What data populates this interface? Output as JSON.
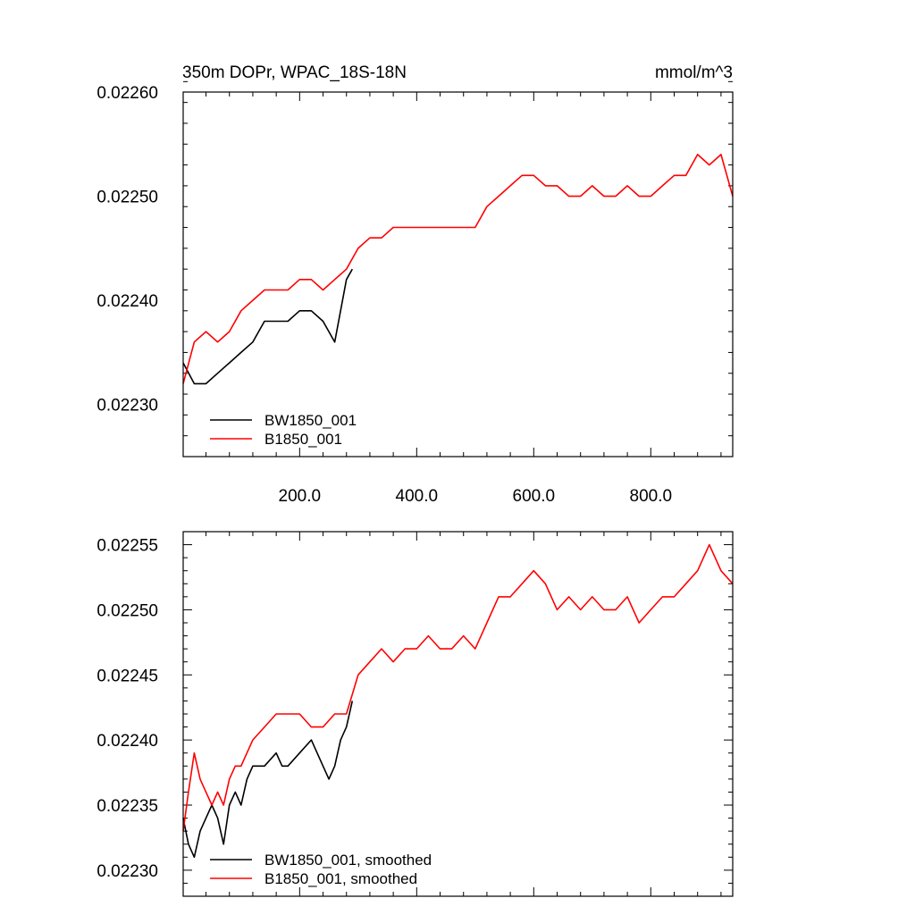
{
  "chart_data": [
    {
      "type": "line",
      "title": "350m DOPr, WPAC_18S-18N",
      "units": "mmol/m^3",
      "xlim": [
        1,
        940
      ],
      "ylim": [
        0.02225,
        0.0226
      ],
      "xticks": [
        200,
        400,
        600,
        800
      ],
      "xtick_labels": [
        "200.0",
        "400.0",
        "600.0",
        "800.0"
      ],
      "yticks": [
        0.0223,
        0.0224,
        0.0225,
        0.0226
      ],
      "ytick_labels": [
        "0.02230",
        "0.02240",
        "0.02250",
        "0.02260"
      ],
      "legend_position": "bottom-left",
      "series": [
        {
          "name": "BW1850_001",
          "color": "#000000",
          "x": [
            1,
            20,
            40,
            60,
            80,
            100,
            120,
            140,
            160,
            180,
            200,
            220,
            240,
            260,
            280,
            290
          ],
          "y": [
            0.02234,
            0.02232,
            0.02232,
            0.02233,
            0.02234,
            0.02235,
            0.02236,
            0.02238,
            0.02238,
            0.02238,
            0.02239,
            0.02239,
            0.02238,
            0.02236,
            0.02242,
            0.02243
          ]
        },
        {
          "name": "B1850_001",
          "color": "#ff0000",
          "x": [
            1,
            20,
            40,
            60,
            80,
            100,
            120,
            140,
            160,
            180,
            200,
            220,
            240,
            260,
            280,
            300,
            320,
            340,
            360,
            380,
            400,
            420,
            440,
            460,
            480,
            500,
            520,
            540,
            560,
            580,
            600,
            620,
            640,
            660,
            680,
            700,
            720,
            740,
            760,
            780,
            800,
            820,
            840,
            860,
            880,
            900,
            920,
            940
          ],
          "y": [
            0.02232,
            0.02236,
            0.02237,
            0.02236,
            0.02237,
            0.02239,
            0.0224,
            0.02241,
            0.02241,
            0.02241,
            0.02242,
            0.02242,
            0.02241,
            0.02242,
            0.02243,
            0.02245,
            0.02246,
            0.02246,
            0.02247,
            0.02247,
            0.02247,
            0.02247,
            0.02247,
            0.02247,
            0.02247,
            0.02247,
            0.02249,
            0.0225,
            0.02251,
            0.02252,
            0.02252,
            0.02251,
            0.02251,
            0.0225,
            0.0225,
            0.02251,
            0.0225,
            0.0225,
            0.02251,
            0.0225,
            0.0225,
            0.02251,
            0.02252,
            0.02252,
            0.02254,
            0.02253,
            0.02254,
            0.0225
          ]
        }
      ]
    },
    {
      "type": "line",
      "xlim": [
        1,
        940
      ],
      "ylim": [
        0.02228,
        0.02256
      ],
      "xticks": [
        200,
        400,
        600,
        800
      ],
      "yticks": [
        0.0223,
        0.02235,
        0.0224,
        0.02245,
        0.0225,
        0.02255
      ],
      "ytick_labels": [
        "0.02230",
        "0.02235",
        "0.02240",
        "0.02245",
        "0.02250",
        "0.02255"
      ],
      "legend_position": "bottom-left",
      "series": [
        {
          "name": "BW1850_001, smoothed",
          "color": "#000000",
          "x": [
            1,
            10,
            20,
            30,
            40,
            50,
            60,
            70,
            80,
            90,
            100,
            110,
            120,
            140,
            160,
            170,
            180,
            200,
            220,
            240,
            250,
            260,
            270,
            280,
            290
          ],
          "y": [
            0.02234,
            0.02232,
            0.02231,
            0.02233,
            0.02234,
            0.02235,
            0.02234,
            0.02232,
            0.02235,
            0.02236,
            0.02235,
            0.02237,
            0.02238,
            0.02238,
            0.02239,
            0.02238,
            0.02238,
            0.02239,
            0.0224,
            0.02238,
            0.02237,
            0.02238,
            0.0224,
            0.02241,
            0.02243
          ]
        },
        {
          "name": "B1850_001, smoothed",
          "color": "#ff0000",
          "x": [
            1,
            10,
            20,
            30,
            40,
            50,
            60,
            70,
            80,
            90,
            100,
            120,
            140,
            160,
            180,
            200,
            220,
            240,
            260,
            280,
            300,
            320,
            340,
            360,
            380,
            400,
            420,
            440,
            460,
            480,
            500,
            520,
            540,
            560,
            580,
            600,
            620,
            640,
            660,
            680,
            700,
            720,
            740,
            760,
            780,
            800,
            820,
            840,
            860,
            880,
            900,
            920,
            940
          ],
          "y": [
            0.02233,
            0.02236,
            0.02239,
            0.02237,
            0.02236,
            0.02235,
            0.02236,
            0.02235,
            0.02237,
            0.02238,
            0.02238,
            0.0224,
            0.02241,
            0.02242,
            0.02242,
            0.02242,
            0.02241,
            0.02241,
            0.02242,
            0.02242,
            0.02245,
            0.02246,
            0.02247,
            0.02246,
            0.02247,
            0.02247,
            0.02248,
            0.02247,
            0.02247,
            0.02248,
            0.02247,
            0.02249,
            0.02251,
            0.02251,
            0.02252,
            0.02253,
            0.02252,
            0.0225,
            0.02251,
            0.0225,
            0.02251,
            0.0225,
            0.0225,
            0.02251,
            0.02249,
            0.0225,
            0.02251,
            0.02251,
            0.02252,
            0.02253,
            0.02255,
            0.02253,
            0.02252
          ]
        }
      ]
    }
  ]
}
